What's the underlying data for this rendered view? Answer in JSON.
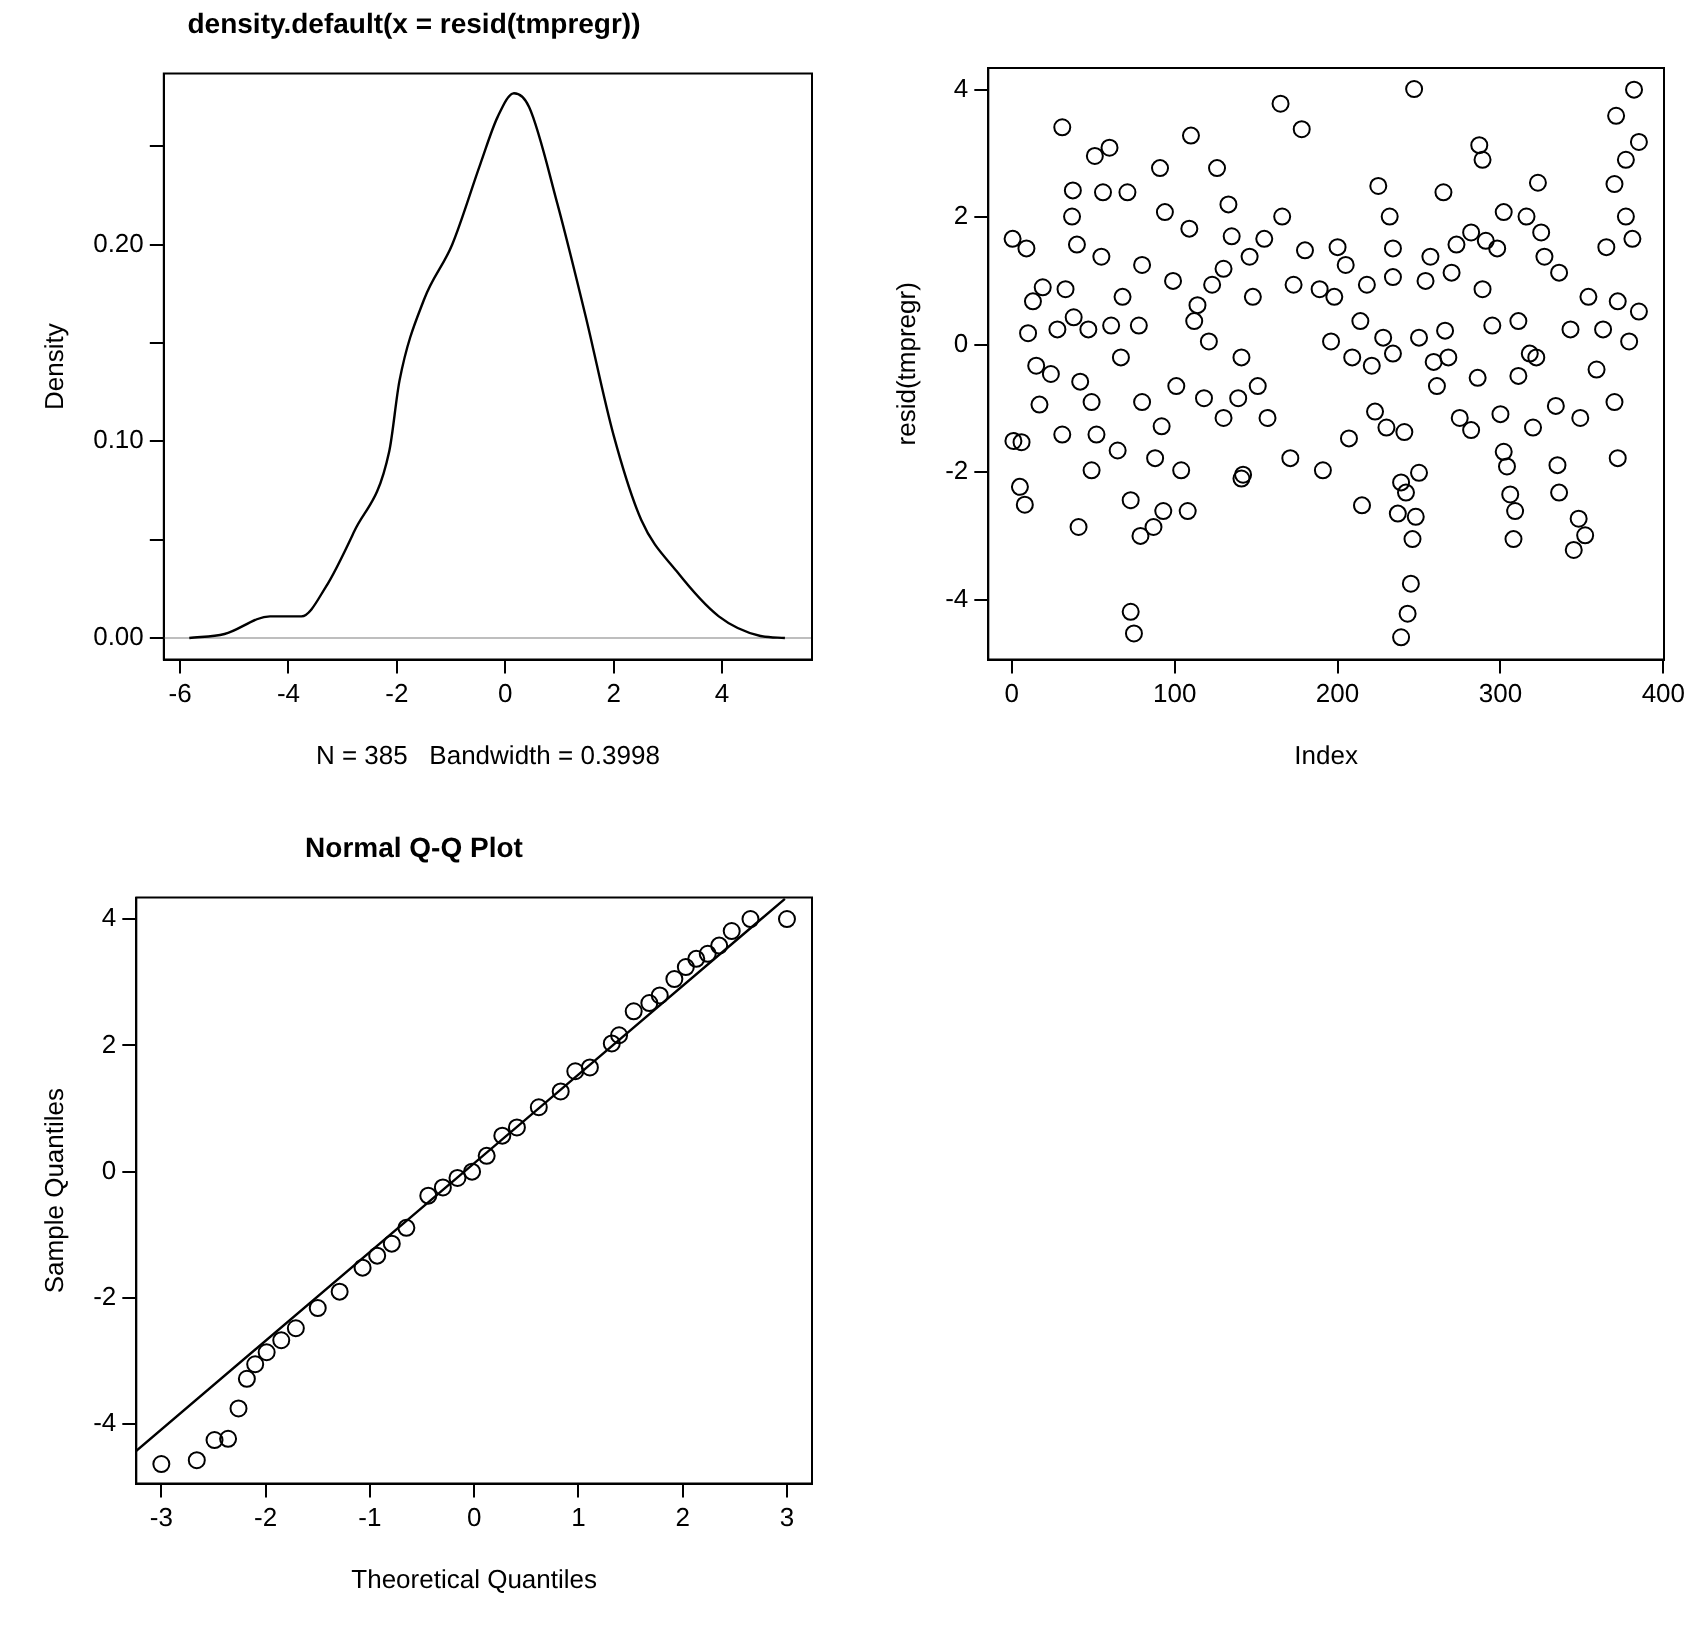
{
  "chart_data": [
    {
      "type": "line",
      "title": "density.default(x = resid(tmpregr))",
      "xlabel": "N = 385   Bandwidth = 0.3998",
      "ylabel": "Density",
      "series": [
        {
          "color": "#000000",
          "x": [
            -5.83,
            -5.18,
            -4.34,
            -3.76,
            -3.31,
            -2.79,
            -2.14,
            -1.95,
            -1.5,
            -0.98,
            -0.46,
            -0.14,
            0.16,
            0.44,
            0.96,
            1.48,
            2.0,
            2.51,
            3.16,
            3.94,
            4.71,
            5.16
          ],
          "values": [
            0.0,
            0.002,
            0.011,
            0.011,
            0.026,
            0.054,
            0.095,
            0.131,
            0.172,
            0.2,
            0.241,
            0.265,
            0.277,
            0.27,
            0.221,
            0.164,
            0.103,
            0.06,
            0.034,
            0.011,
            0.001,
            0.0
          ]
        }
      ],
      "xlim": [
        -6.3,
        5.66
      ],
      "xticks": [
        -6,
        -4,
        -2,
        0,
        2,
        4
      ],
      "ylim": [
        -0.011,
        0.287
      ],
      "yticks": [
        {
          "value": 0,
          "label": "0.00"
        },
        {
          "value": 0.05,
          "label": null
        },
        {
          "value": 0.1,
          "label": "0.10"
        },
        {
          "value": 0.15,
          "label": null
        },
        {
          "value": 0.2,
          "label": "0.20"
        },
        {
          "value": 0.25,
          "label": null
        }
      ],
      "ref_lines": [
        {
          "axis": "y",
          "value": 0,
          "color": "#bebebe"
        }
      ],
      "grid": false,
      "legend": false
    },
    {
      "type": "scatter",
      "xlabel": "Index",
      "ylabel": "resid(tmpregr)",
      "marker": "circle",
      "x": [
        0.5,
        9,
        1,
        6,
        5,
        8,
        17,
        13,
        19,
        10,
        15,
        24,
        31,
        37.5,
        37,
        40,
        28,
        33,
        42,
        38,
        31,
        41,
        47,
        49,
        51,
        60,
        56,
        55,
        61,
        52,
        49,
        65,
        67,
        71,
        68,
        73,
        73,
        75,
        79,
        80,
        80,
        78,
        87,
        93,
        91,
        94,
        88,
        92,
        99,
        101,
        104,
        108,
        110,
        109,
        112,
        118,
        126,
        123,
        130,
        133,
        135,
        130,
        142,
        141,
        139,
        148,
        114,
        121,
        165,
        178,
        166,
        155,
        146,
        180,
        141,
        171,
        157,
        151,
        173,
        189,
        198,
        200,
        205,
        218,
        225,
        232,
        234,
        234,
        214,
        196,
        209,
        221,
        228,
        234,
        223,
        230,
        207,
        191,
        215,
        241,
        239,
        242,
        237,
        248,
        246,
        245,
        243,
        239,
        247,
        250,
        254,
        257,
        250,
        259,
        261,
        268,
        266,
        265,
        273,
        282,
        270,
        287,
        289,
        291,
        298,
        289,
        295,
        286,
        282,
        275,
        300,
        302,
        304,
        306,
        309,
        308,
        302,
        316,
        323,
        325,
        327,
        336,
        311,
        318,
        322,
        311,
        320,
        335,
        336,
        334,
        349,
        348,
        345,
        352,
        343,
        354,
        363,
        359,
        370,
        372,
        365,
        370,
        377,
        371,
        382,
        385,
        381,
        377,
        385,
        379,
        372
      ],
      "values": [
        1.66,
        1.51,
        -1.51,
        -1.53,
        -2.23,
        -2.51,
        -0.94,
        0.68,
        0.9,
        0.18,
        -0.33,
        -0.46,
        3.41,
        2.42,
        2.01,
        1.57,
        0.24,
        0.87,
        -0.58,
        0.43,
        -1.41,
        -2.86,
        0.24,
        -0.9,
        2.96,
        3.09,
        2.39,
        1.38,
        0.3,
        -1.41,
        -1.97,
        -1.66,
        -0.2,
        2.39,
        0.75,
        -2.44,
        -4.19,
        -4.53,
        -3.0,
        -0.9,
        1.25,
        0.3,
        -2.86,
        -2.61,
        2.77,
        2.08,
        -1.78,
        -1.28,
        1.0,
        -0.65,
        -1.97,
        -2.61,
        3.28,
        1.82,
        0.37,
        -0.84,
        2.77,
        0.94,
        1.19,
        2.2,
        1.7,
        -1.15,
        -2.04,
        -0.2,
        -0.84,
        0.75,
        0.62,
        0.05,
        3.78,
        3.38,
        2.01,
        1.66,
        1.38,
        1.48,
        -2.1,
        -1.78,
        -1.15,
        -0.65,
        0.94,
        0.87,
        0.75,
        1.53,
        1.25,
        0.94,
        2.49,
        2.01,
        1.51,
        1.06,
        0.37,
        0.05,
        -0.2,
        -0.33,
        0.11,
        -0.14,
        -1.05,
        -1.3,
        -1.47,
        -1.97,
        -2.52,
        -1.37,
        -2.16,
        -2.32,
        -2.65,
        -2.7,
        -3.05,
        -3.75,
        -4.22,
        -4.59,
        4.01,
        -2.01,
        1.0,
        1.38,
        0.11,
        -0.27,
        -0.65,
        -0.2,
        0.22,
        2.39,
        1.57,
        1.76,
        1.13,
        3.13,
        2.9,
        1.63,
        1.51,
        0.87,
        0.3,
        -0.52,
        -1.34,
        -1.15,
        -1.09,
        -1.68,
        -1.91,
        -2.35,
        -2.61,
        -3.05,
        2.08,
        2.01,
        2.54,
        1.76,
        1.38,
        1.13,
        0.37,
        -0.14,
        -0.2,
        -0.49,
        -1.3,
        -1.89,
        -2.32,
        -0.96,
        -1.15,
        -2.73,
        -3.22,
        -2.99,
        0.24,
        0.75,
        0.24,
        -0.39,
        -0.9,
        -1.78,
        1.53,
        2.52,
        2.9,
        3.59,
        4.0,
        3.18,
        1.66,
        2.01,
        0.52,
        0.05,
        0.68
      ],
      "color": "#000000",
      "xlim": [
        -14.4,
        400.4
      ],
      "xticks": [
        0,
        100,
        200,
        300,
        400
      ],
      "ylim": [
        -4.94,
        4.34
      ],
      "yticks": [
        -4,
        -2,
        0,
        2,
        4
      ],
      "grid": false,
      "legend": false
    },
    {
      "type": "scatter",
      "title": "Normal Q-Q Plot",
      "xlabel": "Theoretical Quantiles",
      "ylabel": "Sample Quantiles",
      "marker": "circle",
      "series": [
        {
          "color": "#000000",
          "x": [
            -3.0,
            -2.66,
            -2.49,
            -2.36,
            -2.26,
            -2.18,
            -2.1,
            -1.99,
            -1.85,
            -1.71,
            -1.5,
            -1.29,
            -1.07,
            -0.93,
            -0.79,
            -0.65,
            -0.44,
            -0.3,
            -0.16,
            -0.02,
            0.12,
            0.27,
            0.41,
            0.62,
            0.83,
            0.97,
            1.11,
            1.32,
            1.39,
            1.53,
            1.68,
            1.78,
            1.92,
            2.03,
            2.13,
            2.24,
            2.35,
            2.47,
            2.65,
            3.0
          ],
          "values": [
            -4.63,
            -4.57,
            -4.25,
            -4.23,
            -3.75,
            -3.28,
            -3.05,
            -2.86,
            -2.67,
            -2.48,
            -2.16,
            -1.9,
            -1.52,
            -1.33,
            -1.14,
            -0.89,
            -0.38,
            -0.25,
            -0.1,
            0.0,
            0.25,
            0.57,
            0.7,
            1.02,
            1.27,
            1.59,
            1.65,
            2.03,
            2.16,
            2.54,
            2.67,
            2.79,
            3.05,
            3.24,
            3.37,
            3.45,
            3.58,
            3.81,
            4.0,
            4.0
          ]
        },
        {
          "type": "line",
          "marker": "none",
          "color": "#000000",
          "x": [
            -3.24,
            2.98
          ],
          "values": [
            -4.42,
            4.32
          ]
        }
      ],
      "xlim": [
        -3.24,
        3.24
      ],
      "xticks": [
        -3,
        -2,
        -1,
        0,
        1,
        2,
        3
      ],
      "ylim": [
        -4.94,
        4.34
      ],
      "yticks": [
        -4,
        -2,
        0,
        2,
        4
      ],
      "grid": false,
      "legend": false
    }
  ]
}
